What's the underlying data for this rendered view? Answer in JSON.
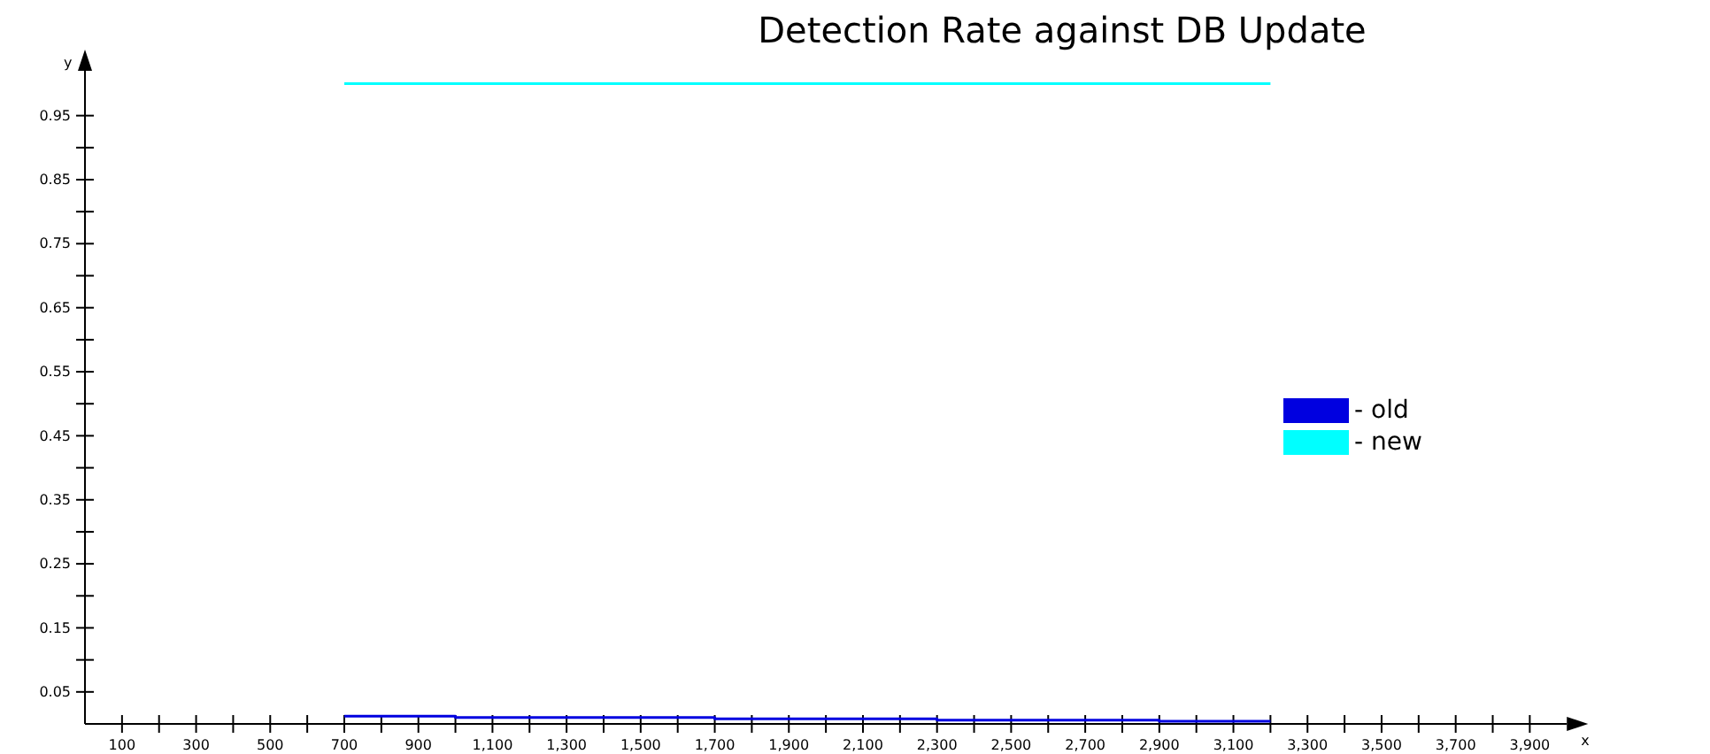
{
  "chart_data": {
    "type": "step",
    "title": "Detection Rate against DB Update",
    "xlabel": "x",
    "ylabel": "y",
    "xlim": [
      0,
      4000
    ],
    "ylim": [
      0,
      1.02
    ],
    "xticks": [
      100,
      {
        "value": 200,
        "label": null
      },
      300,
      {
        "value": 400,
        "label": null
      },
      500,
      {
        "value": 600,
        "label": null
      },
      700,
      {
        "value": 800,
        "label": null
      },
      900,
      {
        "value": 1000,
        "label": null
      },
      {
        "value": 1100,
        "label": "1,100"
      },
      {
        "value": 1200,
        "label": null
      },
      {
        "value": 1300,
        "label": "1,300"
      },
      {
        "value": 1400,
        "label": null
      },
      {
        "value": 1500,
        "label": "1,500"
      },
      {
        "value": 1600,
        "label": null
      },
      {
        "value": 1700,
        "label": "1,700"
      },
      {
        "value": 1800,
        "label": null
      },
      {
        "value": 1900,
        "label": "1,900"
      },
      {
        "value": 2000,
        "label": null
      },
      {
        "value": 2100,
        "label": "2,100"
      },
      {
        "value": 2200,
        "label": null
      },
      {
        "value": 2300,
        "label": "2,300"
      },
      {
        "value": 2400,
        "label": null
      },
      {
        "value": 2500,
        "label": "2,500"
      },
      {
        "value": 2600,
        "label": null
      },
      {
        "value": 2700,
        "label": "2,700"
      },
      {
        "value": 2800,
        "label": null
      },
      {
        "value": 2900,
        "label": "2,900"
      },
      {
        "value": 3000,
        "label": null
      },
      {
        "value": 3100,
        "label": "3,100"
      },
      {
        "value": 3200,
        "label": null
      },
      {
        "value": 3300,
        "label": "3,300"
      },
      {
        "value": 3400,
        "label": null
      },
      {
        "value": 3500,
        "label": "3,500"
      },
      {
        "value": 3600,
        "label": null
      },
      {
        "value": 3700,
        "label": "3,700"
      },
      {
        "value": 3800,
        "label": null
      },
      {
        "value": 3900,
        "label": "3,900"
      }
    ],
    "yticks": [
      0.05,
      {
        "value": 0.1,
        "label": null
      },
      0.15,
      {
        "value": 0.2,
        "label": null
      },
      0.25,
      {
        "value": 0.3,
        "label": null
      },
      0.35,
      {
        "value": 0.4,
        "label": null
      },
      0.45,
      {
        "value": 0.5,
        "label": null
      },
      0.55,
      {
        "value": 0.6,
        "label": null
      },
      0.65,
      {
        "value": 0.7,
        "label": null
      },
      0.75,
      {
        "value": 0.8,
        "label": null
      },
      0.85,
      {
        "value": 0.9,
        "label": null
      },
      0.95
    ],
    "x": [
      700,
      1000,
      1700,
      2300,
      2900,
      3200
    ],
    "series": [
      {
        "name": "- old",
        "color": "#0000e0",
        "values": [
          0.012,
          0.01,
          0.008,
          0.006,
          0.004,
          0.004
        ]
      },
      {
        "name": "- new",
        "color": "#00ffff",
        "values": [
          1.0,
          1.0,
          1.0,
          1.0,
          1.0,
          1.0
        ]
      }
    ],
    "legend": "right",
    "grid": false,
    "line_style": "solid"
  }
}
